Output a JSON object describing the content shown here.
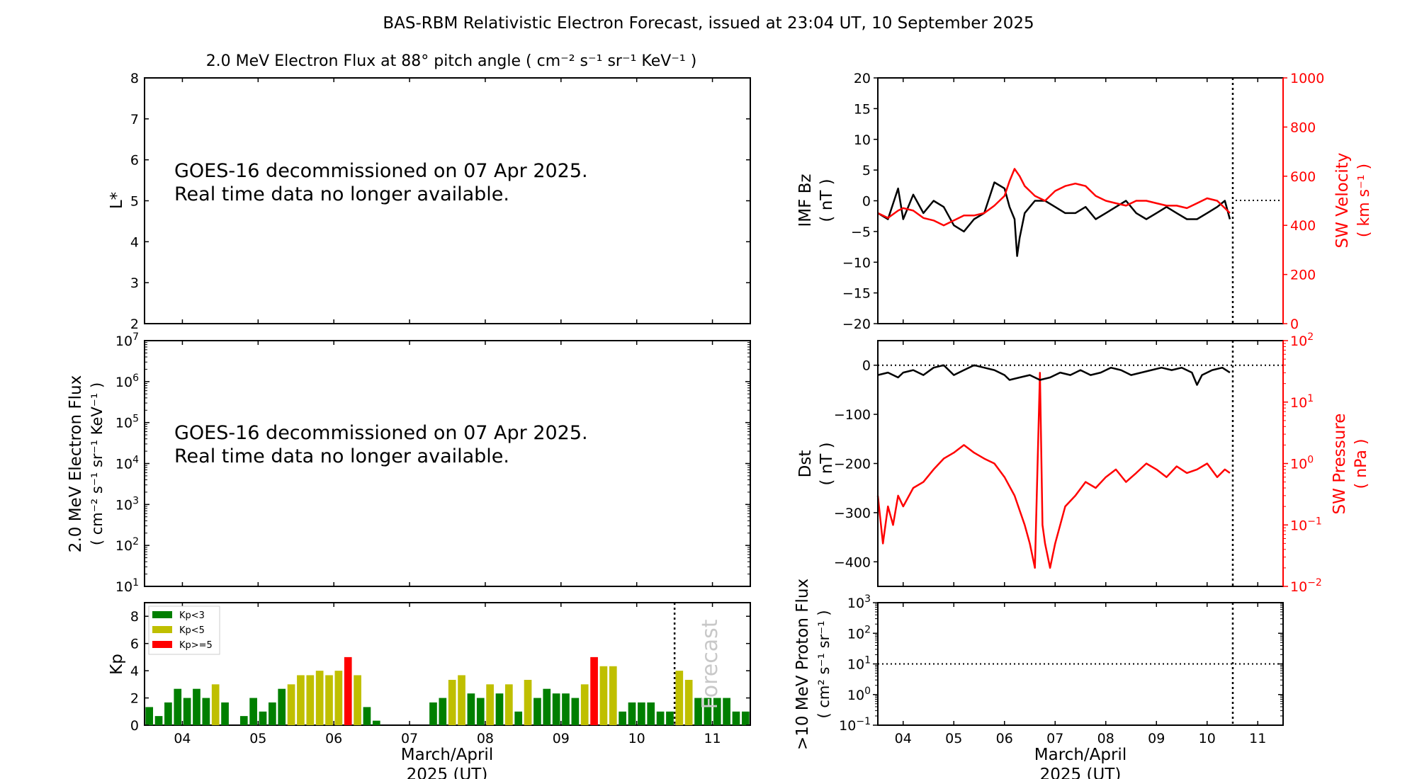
{
  "figure_title": "BAS-RBM Relativistic Electron Forecast, issued at 23:04 UT, 10 September 2025",
  "colors": {
    "green": "#007f00",
    "olive": "#bfbf00",
    "red": "#ff0000",
    "black": "#000000"
  },
  "chart_data": [
    {
      "id": "lstar",
      "type": "heatmap",
      "title": "2.0 MeV Electron Flux at 88° pitch angle ( cm⁻² s⁻¹ sr⁻¹ KeV⁻¹ )",
      "ylabel": "L*",
      "ylim": [
        2,
        8
      ],
      "yticks": [
        "2",
        "3",
        "4",
        "5",
        "6",
        "7",
        "8"
      ],
      "annotation": [
        "GOES-16 decommissioned on 07 Apr 2025.",
        "Real time data no longer available."
      ]
    },
    {
      "id": "flux",
      "type": "line",
      "ylabel": [
        "2.0 MeV Electron Flux",
        "( cm⁻² s⁻¹ sr⁻¹ KeV⁻¹ )"
      ],
      "yscale": "log",
      "ylim": [
        10,
        10000000
      ],
      "yticks": [
        {
          "b": "10",
          "e": "1"
        },
        {
          "b": "10",
          "e": "2"
        },
        {
          "b": "10",
          "e": "3"
        },
        {
          "b": "10",
          "e": "4"
        },
        {
          "b": "10",
          "e": "5"
        },
        {
          "b": "10",
          "e": "6"
        },
        {
          "b": "10",
          "e": "7"
        }
      ],
      "annotation": [
        "GOES-16 decommissioned on 07 Apr 2025.",
        "Real time data no longer available."
      ]
    },
    {
      "id": "kp",
      "type": "bar",
      "ylabel": "Kp",
      "ylim": [
        0,
        9
      ],
      "yticks": [
        "0",
        "2",
        "4",
        "6",
        "8"
      ],
      "xlim": [
        3.5,
        11.5
      ],
      "xticks": [
        "04",
        "05",
        "06",
        "07",
        "08",
        "09",
        "10",
        "11"
      ],
      "xlabel": [
        "March/April",
        "2025 (UT)"
      ],
      "forecast_label": "Forecast",
      "forecast_start": 10.5,
      "legend": [
        {
          "label": "Kp<3",
          "color": "#007f00"
        },
        {
          "label": "Kp<5",
          "color": "#bfbf00"
        },
        {
          "label": "Kp>=5",
          "color": "#ff0000"
        }
      ],
      "bar_width": 0.1,
      "values": [
        {
          "x": 3.5625,
          "kp": 1.33
        },
        {
          "x": 3.6875,
          "kp": 0.67
        },
        {
          "x": 3.8125,
          "kp": 1.67
        },
        {
          "x": 3.9375,
          "kp": 2.67
        },
        {
          "x": 4.0625,
          "kp": 2.0
        },
        {
          "x": 4.1875,
          "kp": 2.67
        },
        {
          "x": 4.3125,
          "kp": 2.0
        },
        {
          "x": 4.4375,
          "kp": 3.0
        },
        {
          "x": 4.5625,
          "kp": 1.67
        },
        {
          "x": 4.8125,
          "kp": 0.67
        },
        {
          "x": 4.9375,
          "kp": 2.0
        },
        {
          "x": 5.0625,
          "kp": 1.0
        },
        {
          "x": 5.1875,
          "kp": 1.67
        },
        {
          "x": 5.3125,
          "kp": 2.67
        },
        {
          "x": 5.4375,
          "kp": 3.0
        },
        {
          "x": 5.5625,
          "kp": 3.67
        },
        {
          "x": 5.6875,
          "kp": 3.67
        },
        {
          "x": 5.8125,
          "kp": 4.0
        },
        {
          "x": 5.9375,
          "kp": 3.67
        },
        {
          "x": 6.0625,
          "kp": 4.0
        },
        {
          "x": 6.1875,
          "kp": 5.0
        },
        {
          "x": 6.3125,
          "kp": 3.67
        },
        {
          "x": 6.4375,
          "kp": 1.33
        },
        {
          "x": 6.5625,
          "kp": 0.33
        },
        {
          "x": 7.3125,
          "kp": 1.67
        },
        {
          "x": 7.4375,
          "kp": 2.0
        },
        {
          "x": 7.5625,
          "kp": 3.33
        },
        {
          "x": 7.6875,
          "kp": 3.67
        },
        {
          "x": 7.8125,
          "kp": 2.33
        },
        {
          "x": 7.9375,
          "kp": 2.0
        },
        {
          "x": 8.0625,
          "kp": 3.0
        },
        {
          "x": 8.1875,
          "kp": 2.33
        },
        {
          "x": 8.3125,
          "kp": 3.0
        },
        {
          "x": 8.4375,
          "kp": 1.0
        },
        {
          "x": 8.5625,
          "kp": 3.33
        },
        {
          "x": 8.6875,
          "kp": 2.0
        },
        {
          "x": 8.8125,
          "kp": 2.67
        },
        {
          "x": 8.9375,
          "kp": 2.33
        },
        {
          "x": 9.0625,
          "kp": 2.33
        },
        {
          "x": 9.1875,
          "kp": 2.0
        },
        {
          "x": 9.3125,
          "kp": 3.0
        },
        {
          "x": 9.4375,
          "kp": 5.0
        },
        {
          "x": 9.5625,
          "kp": 4.33
        },
        {
          "x": 9.6875,
          "kp": 4.33
        },
        {
          "x": 9.8125,
          "kp": 1.0
        },
        {
          "x": 9.9375,
          "kp": 1.67
        },
        {
          "x": 10.0625,
          "kp": 1.67
        },
        {
          "x": 10.1875,
          "kp": 1.67
        },
        {
          "x": 10.3125,
          "kp": 1.0
        },
        {
          "x": 10.4375,
          "kp": 1.0
        },
        {
          "x": 10.5625,
          "kp": 4.0
        },
        {
          "x": 10.6875,
          "kp": 3.33
        },
        {
          "x": 10.8125,
          "kp": 2.0
        },
        {
          "x": 10.9375,
          "kp": 2.0
        },
        {
          "x": 11.0625,
          "kp": 2.0
        },
        {
          "x": 11.1875,
          "kp": 2.0
        },
        {
          "x": 11.3125,
          "kp": 1.0
        },
        {
          "x": 11.4375,
          "kp": 1.0
        }
      ]
    },
    {
      "id": "imf",
      "type": "line",
      "ylabel_left": [
        "IMF Bz",
        "( nT )"
      ],
      "ylabel_right": [
        "SW Velocity",
        "( km s⁻¹ )"
      ],
      "ylim_left": [
        -20,
        20
      ],
      "yticks_left": [
        "−20",
        "−15",
        "−10",
        "−5",
        "0",
        "5",
        "10",
        "15",
        "20"
      ],
      "ylim_right": [
        0,
        1000
      ],
      "yticks_right": [
        "0",
        "200",
        "400",
        "600",
        "800",
        "1000"
      ],
      "xlim": [
        3.5,
        11.5
      ],
      "now": 10.5,
      "series": [
        {
          "color": "#000000",
          "axis": "left",
          "points": [
            [
              3.5,
              -2
            ],
            [
              3.7,
              -3
            ],
            [
              3.9,
              2
            ],
            [
              4.0,
              -3
            ],
            [
              4.2,
              1
            ],
            [
              4.4,
              -2
            ],
            [
              4.6,
              0
            ],
            [
              4.8,
              -1
            ],
            [
              5.0,
              -4
            ],
            [
              5.2,
              -5
            ],
            [
              5.4,
              -3
            ],
            [
              5.6,
              -2
            ],
            [
              5.8,
              3
            ],
            [
              6.0,
              2
            ],
            [
              6.1,
              -1
            ],
            [
              6.2,
              -3
            ],
            [
              6.25,
              -9
            ],
            [
              6.3,
              -6
            ],
            [
              6.4,
              -2
            ],
            [
              6.5,
              -1
            ],
            [
              6.6,
              0
            ],
            [
              6.8,
              0
            ],
            [
              7.0,
              -1
            ],
            [
              7.2,
              -2
            ],
            [
              7.4,
              -2
            ],
            [
              7.6,
              -1
            ],
            [
              7.8,
              -3
            ],
            [
              8.0,
              -2
            ],
            [
              8.2,
              -1
            ],
            [
              8.4,
              0
            ],
            [
              8.6,
              -2
            ],
            [
              8.8,
              -3
            ],
            [
              9.0,
              -2
            ],
            [
              9.2,
              -1
            ],
            [
              9.4,
              -2
            ],
            [
              9.6,
              -3
            ],
            [
              9.8,
              -3
            ],
            [
              10.0,
              -2
            ],
            [
              10.2,
              -1
            ],
            [
              10.35,
              0
            ],
            [
              10.45,
              -3
            ]
          ]
        },
        {
          "color": "#ff0000",
          "axis": "right",
          "points": [
            [
              3.5,
              450
            ],
            [
              3.7,
              430
            ],
            [
              3.9,
              460
            ],
            [
              4.0,
              470
            ],
            [
              4.2,
              460
            ],
            [
              4.4,
              430
            ],
            [
              4.6,
              420
            ],
            [
              4.8,
              400
            ],
            [
              5.0,
              420
            ],
            [
              5.2,
              440
            ],
            [
              5.4,
              440
            ],
            [
              5.6,
              450
            ],
            [
              5.8,
              480
            ],
            [
              6.0,
              520
            ],
            [
              6.1,
              580
            ],
            [
              6.2,
              630
            ],
            [
              6.3,
              600
            ],
            [
              6.4,
              560
            ],
            [
              6.5,
              540
            ],
            [
              6.6,
              520
            ],
            [
              6.8,
              500
            ],
            [
              7.0,
              540
            ],
            [
              7.2,
              560
            ],
            [
              7.4,
              570
            ],
            [
              7.6,
              560
            ],
            [
              7.8,
              520
            ],
            [
              8.0,
              500
            ],
            [
              8.2,
              490
            ],
            [
              8.4,
              480
            ],
            [
              8.6,
              500
            ],
            [
              8.8,
              500
            ],
            [
              9.0,
              490
            ],
            [
              9.2,
              480
            ],
            [
              9.4,
              480
            ],
            [
              9.6,
              470
            ],
            [
              9.8,
              490
            ],
            [
              10.0,
              510
            ],
            [
              10.2,
              500
            ],
            [
              10.35,
              470
            ],
            [
              10.45,
              450
            ]
          ]
        }
      ]
    },
    {
      "id": "dst",
      "type": "line",
      "ylabel_left": [
        "Dst",
        "( nT )"
      ],
      "ylabel_right": [
        "SW Pressure",
        "( nPa )"
      ],
      "ylim_left": [
        -450,
        50
      ],
      "yticks_left": [
        "−400",
        "−300",
        "−200",
        "−100",
        "0"
      ],
      "yscale_right": "log",
      "ylim_right": [
        0.01,
        100
      ],
      "yticks_right": [
        {
          "b": "10",
          "e": "−2"
        },
        {
          "b": "10",
          "e": "−1"
        },
        {
          "b": "10",
          "e": "0"
        },
        {
          "b": "10",
          "e": "1"
        },
        {
          "b": "10",
          "e": "2"
        }
      ],
      "xlim": [
        3.5,
        11.5
      ],
      "now": 10.5,
      "series": [
        {
          "color": "#000000",
          "axis": "left",
          "points": [
            [
              3.5,
              -20
            ],
            [
              3.7,
              -15
            ],
            [
              3.9,
              -25
            ],
            [
              4.0,
              -15
            ],
            [
              4.2,
              -10
            ],
            [
              4.4,
              -20
            ],
            [
              4.6,
              -5
            ],
            [
              4.8,
              0
            ],
            [
              5.0,
              -20
            ],
            [
              5.2,
              -10
            ],
            [
              5.4,
              0
            ],
            [
              5.6,
              -5
            ],
            [
              5.8,
              -10
            ],
            [
              6.0,
              -20
            ],
            [
              6.1,
              -30
            ],
            [
              6.3,
              -25
            ],
            [
              6.5,
              -20
            ],
            [
              6.7,
              -30
            ],
            [
              6.9,
              -25
            ],
            [
              7.1,
              -15
            ],
            [
              7.3,
              -20
            ],
            [
              7.5,
              -10
            ],
            [
              7.7,
              -20
            ],
            [
              7.9,
              -15
            ],
            [
              8.1,
              -5
            ],
            [
              8.3,
              -10
            ],
            [
              8.5,
              -20
            ],
            [
              8.7,
              -15
            ],
            [
              8.9,
              -10
            ],
            [
              9.1,
              -5
            ],
            [
              9.3,
              -10
            ],
            [
              9.5,
              -5
            ],
            [
              9.7,
              -15
            ],
            [
              9.8,
              -40
            ],
            [
              9.9,
              -20
            ],
            [
              10.1,
              -10
            ],
            [
              10.3,
              -5
            ],
            [
              10.45,
              -15
            ]
          ]
        },
        {
          "color": "#ff0000",
          "axis": "right",
          "points": [
            [
              3.5,
              0.3
            ],
            [
              3.6,
              0.05
            ],
            [
              3.7,
              0.2
            ],
            [
              3.8,
              0.1
            ],
            [
              3.9,
              0.3
            ],
            [
              4.0,
              0.2
            ],
            [
              4.2,
              0.4
            ],
            [
              4.4,
              0.5
            ],
            [
              4.6,
              0.8
            ],
            [
              4.8,
              1.2
            ],
            [
              5.0,
              1.5
            ],
            [
              5.2,
              2.0
            ],
            [
              5.4,
              1.5
            ],
            [
              5.6,
              1.2
            ],
            [
              5.8,
              1.0
            ],
            [
              6.0,
              0.6
            ],
            [
              6.2,
              0.3
            ],
            [
              6.4,
              0.1
            ],
            [
              6.5,
              0.05
            ],
            [
              6.6,
              0.02
            ],
            [
              6.7,
              30
            ],
            [
              6.75,
              0.1
            ],
            [
              6.8,
              0.05
            ],
            [
              6.9,
              0.02
            ],
            [
              7.0,
              0.05
            ],
            [
              7.1,
              0.1
            ],
            [
              7.2,
              0.2
            ],
            [
              7.4,
              0.3
            ],
            [
              7.6,
              0.5
            ],
            [
              7.8,
              0.4
            ],
            [
              8.0,
              0.6
            ],
            [
              8.2,
              0.8
            ],
            [
              8.4,
              0.5
            ],
            [
              8.6,
              0.7
            ],
            [
              8.8,
              1.0
            ],
            [
              9.0,
              0.8
            ],
            [
              9.2,
              0.6
            ],
            [
              9.4,
              0.9
            ],
            [
              9.6,
              0.7
            ],
            [
              9.8,
              0.8
            ],
            [
              10.0,
              1.0
            ],
            [
              10.2,
              0.6
            ],
            [
              10.35,
              0.8
            ],
            [
              10.45,
              0.7
            ]
          ]
        }
      ]
    },
    {
      "id": "proton",
      "type": "line",
      "ylabel": [
        ">10 MeV Proton Flux",
        "( cm² s⁻¹ sr⁻¹ )"
      ],
      "yscale": "log",
      "ylim": [
        0.1,
        1000
      ],
      "yticks": [
        {
          "b": "10",
          "e": "−1"
        },
        {
          "b": "10",
          "e": "0"
        },
        {
          "b": "10",
          "e": "1"
        },
        {
          "b": "10",
          "e": "2"
        },
        {
          "b": "10",
          "e": "3"
        }
      ],
      "threshold": 10,
      "xlim": [
        3.5,
        11.5
      ],
      "xticks": [
        "04",
        "05",
        "06",
        "07",
        "08",
        "09",
        "10",
        "11"
      ],
      "xlabel": [
        "March/April",
        "2025 (UT)"
      ],
      "now": 10.5
    }
  ]
}
